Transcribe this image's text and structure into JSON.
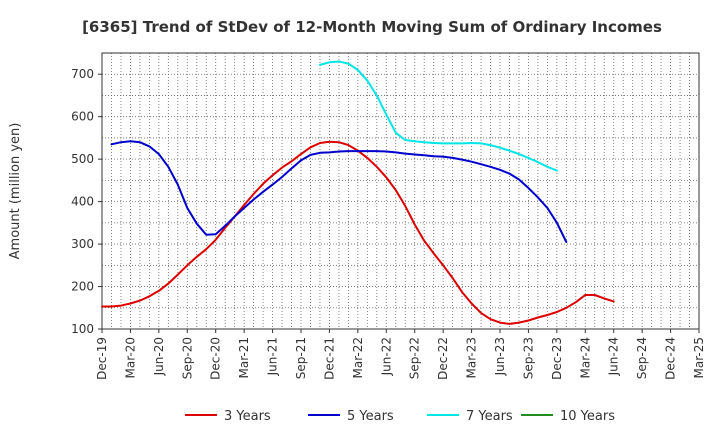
{
  "chart_data": {
    "type": "line",
    "title": "[6365]  Trend of StDev of 12-Month Moving Sum of Ordinary Incomes",
    "xlabel": "",
    "ylabel": "Amount (million yen)",
    "ylim": [
      100,
      750
    ],
    "yticks": [
      100,
      200,
      300,
      400,
      500,
      600,
      700
    ],
    "xticks": [
      "Dec-19",
      "Mar-20",
      "Jun-20",
      "Sep-20",
      "Dec-20",
      "Mar-21",
      "Jun-21",
      "Sep-21",
      "Dec-21",
      "Mar-22",
      "Jun-22",
      "Sep-22",
      "Dec-22",
      "Mar-23",
      "Jun-23",
      "Sep-23",
      "Dec-23",
      "Mar-24",
      "Jun-24",
      "Sep-24",
      "Dec-24",
      "Mar-25"
    ],
    "grid": true,
    "legend_position": "bottom",
    "series": [
      {
        "name": "3 Years",
        "color": "#dd0000",
        "values": [
          [
            0,
            153
          ],
          [
            1,
            153
          ],
          [
            2,
            155
          ],
          [
            3,
            160
          ],
          [
            4,
            167
          ],
          [
            5,
            177
          ],
          [
            6,
            190
          ],
          [
            7,
            207
          ],
          [
            8,
            228
          ],
          [
            9,
            250
          ],
          [
            10,
            270
          ],
          [
            11,
            288
          ],
          [
            12,
            310
          ],
          [
            13,
            338
          ],
          [
            14,
            365
          ],
          [
            15,
            392
          ],
          [
            16,
            418
          ],
          [
            17,
            442
          ],
          [
            18,
            462
          ],
          [
            19,
            480
          ],
          [
            20,
            495
          ],
          [
            21,
            512
          ],
          [
            22,
            528
          ],
          [
            23,
            538
          ],
          [
            24,
            541
          ],
          [
            25,
            540
          ],
          [
            26,
            533
          ],
          [
            27,
            520
          ],
          [
            28,
            503
          ],
          [
            29,
            482
          ],
          [
            30,
            457
          ],
          [
            31,
            427
          ],
          [
            32,
            390
          ],
          [
            33,
            346
          ],
          [
            34,
            308
          ],
          [
            35,
            278
          ],
          [
            36,
            250
          ],
          [
            37,
            220
          ],
          [
            38,
            187
          ],
          [
            39,
            160
          ],
          [
            40,
            138
          ],
          [
            41,
            123
          ],
          [
            42,
            115
          ],
          [
            43,
            112
          ],
          [
            44,
            115
          ],
          [
            45,
            120
          ],
          [
            46,
            127
          ],
          [
            47,
            133
          ],
          [
            48,
            140
          ],
          [
            49,
            150
          ],
          [
            50,
            163
          ],
          [
            51,
            180
          ],
          [
            52,
            180
          ],
          [
            53,
            172
          ],
          [
            54,
            165
          ]
        ]
      },
      {
        "name": "5 Years",
        "color": "#0000cc",
        "values": [
          [
            1,
            535
          ],
          [
            2,
            540
          ],
          [
            3,
            542
          ],
          [
            4,
            540
          ],
          [
            5,
            530
          ],
          [
            6,
            512
          ],
          [
            7,
            482
          ],
          [
            8,
            440
          ],
          [
            9,
            385
          ],
          [
            10,
            348
          ],
          [
            11,
            322
          ],
          [
            12,
            323
          ],
          [
            13,
            343
          ],
          [
            14,
            365
          ],
          [
            15,
            385
          ],
          [
            16,
            405
          ],
          [
            17,
            423
          ],
          [
            18,
            440
          ],
          [
            19,
            458
          ],
          [
            20,
            478
          ],
          [
            21,
            497
          ],
          [
            22,
            510
          ],
          [
            23,
            515
          ],
          [
            24,
            516
          ],
          [
            25,
            518
          ],
          [
            26,
            519
          ],
          [
            27,
            519
          ],
          [
            28,
            519
          ],
          [
            29,
            519
          ],
          [
            30,
            518
          ],
          [
            31,
            516
          ],
          [
            32,
            513
          ],
          [
            33,
            511
          ],
          [
            34,
            509
          ],
          [
            35,
            507
          ],
          [
            36,
            506
          ],
          [
            37,
            503
          ],
          [
            38,
            499
          ],
          [
            39,
            494
          ],
          [
            40,
            488
          ],
          [
            41,
            482
          ],
          [
            42,
            475
          ],
          [
            43,
            466
          ],
          [
            44,
            452
          ],
          [
            45,
            432
          ],
          [
            46,
            410
          ],
          [
            47,
            385
          ],
          [
            48,
            350
          ],
          [
            49,
            305
          ]
        ]
      },
      {
        "name": "7 Years",
        "color": "#00e5e5",
        "values": [
          [
            23,
            722
          ],
          [
            24,
            728
          ],
          [
            25,
            730
          ],
          [
            26,
            725
          ],
          [
            27,
            710
          ],
          [
            28,
            685
          ],
          [
            29,
            650
          ],
          [
            30,
            605
          ],
          [
            31,
            562
          ],
          [
            32,
            545
          ],
          [
            33,
            542
          ],
          [
            34,
            540
          ],
          [
            35,
            538
          ],
          [
            36,
            537
          ],
          [
            37,
            537
          ],
          [
            38,
            537
          ],
          [
            39,
            538
          ],
          [
            40,
            537
          ],
          [
            41,
            533
          ],
          [
            42,
            527
          ],
          [
            43,
            520
          ],
          [
            44,
            512
          ],
          [
            45,
            503
          ],
          [
            46,
            493
          ],
          [
            47,
            482
          ],
          [
            48,
            473
          ]
        ]
      },
      {
        "name": "10 Years",
        "color": "#228b22",
        "values": []
      }
    ]
  }
}
